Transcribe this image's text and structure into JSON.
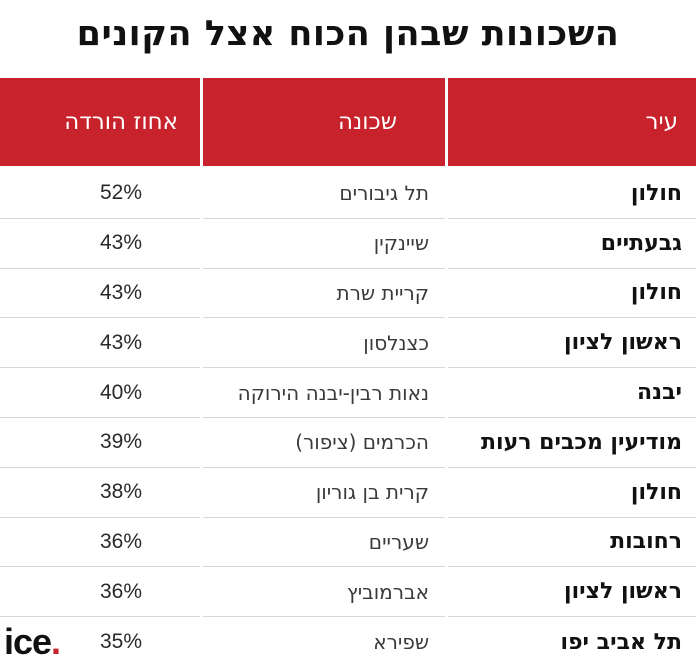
{
  "title": "השכונות שבהן הכוח אצל הקונים",
  "table": {
    "headers": {
      "city": "עיר",
      "neighborhood": "שכונה",
      "discount": "אחוז הורדה"
    },
    "rows": [
      {
        "city": "חולון",
        "neighborhood": "תל גיבורים",
        "discount": "52%"
      },
      {
        "city": "גבעתיים",
        "neighborhood": "שיינקין",
        "discount": "43%"
      },
      {
        "city": "חולון",
        "neighborhood": "קריית שרת",
        "discount": "43%"
      },
      {
        "city": "ראשון לציון",
        "neighborhood": "כצנלסון",
        "discount": "43%"
      },
      {
        "city": "יבנה",
        "neighborhood": "נאות רבין-יבנה הירוקה",
        "discount": "40%"
      },
      {
        "city": "מודיעין מכבים רעות",
        "neighborhood": "הכרמים (ציפור)",
        "discount": "39%"
      },
      {
        "city": "חולון",
        "neighborhood": "קרית בן גוריון",
        "discount": "38%"
      },
      {
        "city": "רחובות",
        "neighborhood": "שעריים",
        "discount": "36%"
      },
      {
        "city": "ראשון לציון",
        "neighborhood": "אברמוביץ",
        "discount": "36%"
      },
      {
        "city": "תל אביב יפו",
        "neighborhood": "שפירא",
        "discount": "35%"
      }
    ]
  },
  "logo": {
    "text": "ice",
    "dot": ".",
    "accent_color": "#c8232c"
  },
  "colors": {
    "header_background": "#c8232c",
    "header_text": "#ffffff",
    "row_divider": "#d8d8d8"
  }
}
